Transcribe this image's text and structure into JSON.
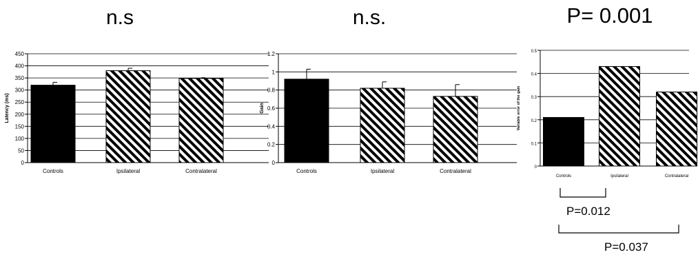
{
  "chart_data": [
    {
      "type": "bar",
      "title": "n.s",
      "ylabel": "Latency (ms)",
      "categories": [
        "Controls",
        "Ipsilateral",
        "Contralateral"
      ],
      "values": [
        320,
        380,
        348
      ],
      "errors": [
        12,
        10,
        3
      ],
      "ylim": [
        0,
        450
      ],
      "yticks": [
        "0",
        "50",
        "100",
        "150",
        "200",
        "250",
        "300",
        "350",
        "400",
        "450"
      ],
      "grid": true
    },
    {
      "type": "bar",
      "title": "n.s.",
      "ylabel": "Gain",
      "categories": [
        "Controls",
        "Ipsilateral",
        "Contralateral"
      ],
      "values": [
        0.92,
        0.82,
        0.73
      ],
      "errors": [
        0.11,
        0.07,
        0.13
      ],
      "ylim": [
        0,
        1.2
      ],
      "yticks": [
        "0",
        "0.2",
        "0.4",
        "0.6",
        "0.8",
        "1",
        "1.2"
      ],
      "grid": true
    },
    {
      "type": "bar",
      "title": "P= 0.001",
      "ylabel": "Variable error of the gain",
      "categories": [
        "Controls",
        "Ipsilateral",
        "Contralateral"
      ],
      "values": [
        0.21,
        0.43,
        0.32
      ],
      "ylim": [
        0,
        0.5
      ],
      "yticks": [
        "0",
        "0.1",
        "0.2",
        "0.3",
        "0.4",
        "0.5"
      ],
      "grid": true,
      "comparisons": [
        {
          "label": "P=0.012",
          "from": "Controls",
          "to": "Ipsilateral"
        },
        {
          "label": "P=0.037",
          "from": "Controls",
          "to": "Contralateral"
        }
      ]
    }
  ],
  "colors": {
    "controls_fill": "#000000",
    "hatch_stroke": "#000000",
    "grid": "#000000"
  }
}
